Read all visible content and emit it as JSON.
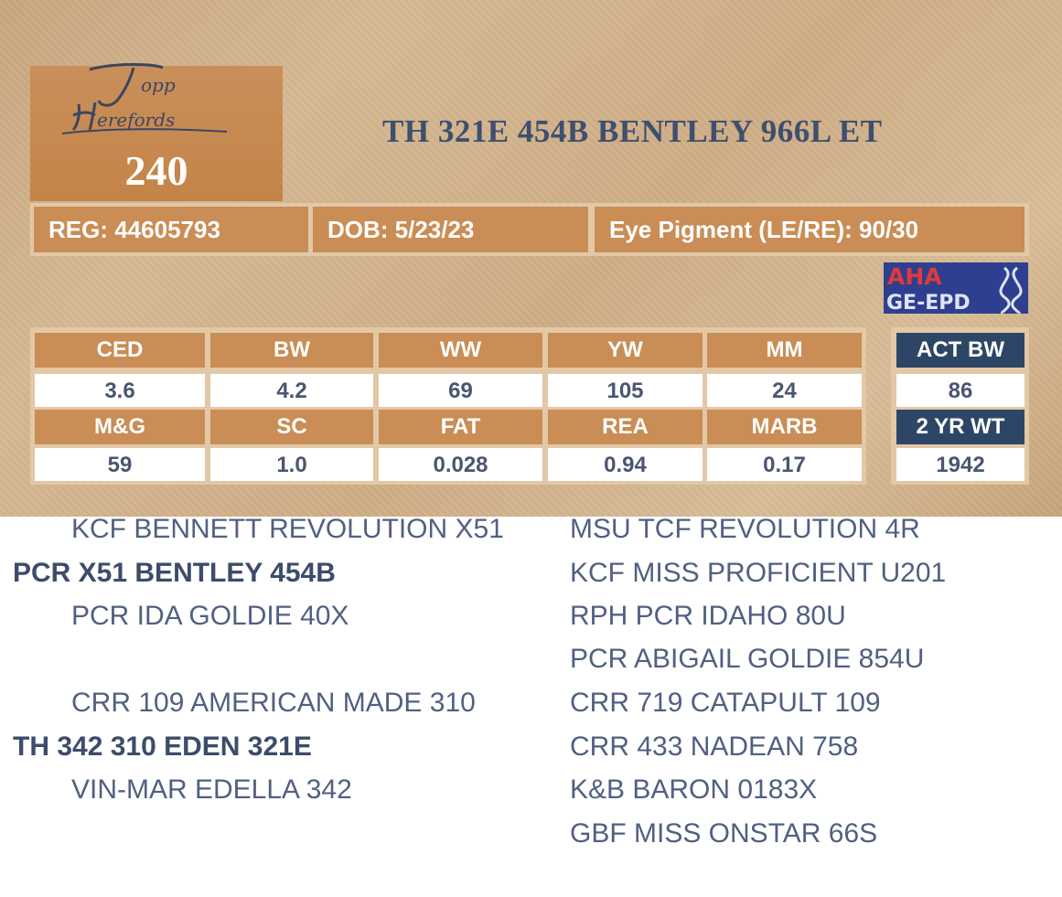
{
  "brand": {
    "logo_text": "Topp Herefords"
  },
  "lot_number": "240",
  "animal_name": "TH 321E 454B BENTLEY 966L ET",
  "info": {
    "reg": "REG: 44605793",
    "dob": "DOB: 5/23/23",
    "eye_pigment": "Eye Pigment (LE/RE): 90/30"
  },
  "badge": {
    "line1": "AHA",
    "line2": "GE-EPD"
  },
  "epd": {
    "row1_headers": [
      "CED",
      "BW",
      "WW",
      "YW",
      "MM"
    ],
    "row1_values": [
      "3.6",
      "4.2",
      "69",
      "105",
      "24"
    ],
    "row2_headers": [
      "M&G",
      "SC",
      "FAT",
      "REA",
      "MARB"
    ],
    "row2_values": [
      "59",
      "1.0",
      "0.028",
      "0.94",
      "0.17"
    ]
  },
  "actuals": {
    "act_bw_label": "ACT BW",
    "act_bw_value": "86",
    "yr2_label": "2 YR WT",
    "yr2_value": "1942"
  },
  "pedigree": {
    "sire_sire": "KCF BENNETT REVOLUTION X51",
    "sire": "PCR X51 BENTLEY 454B",
    "sire_dam": "PCR IDA GOLDIE 40X",
    "dam_sire": "CRR 109 AMERICAN MADE 310",
    "dam": "TH 342 310 EDEN 321E",
    "dam_dam": "VIN-MAR EDELLA 342",
    "right": [
      "MSU TCF REVOLUTION 4R",
      "KCF MISS PROFICIENT U201",
      "RPH PCR IDAHO 80U",
      "PCR ABIGAIL GOLDIE 854U",
      "CRR 719 CATAPULT 109",
      "CRR 433 NADEAN 758",
      "K&B BARON 0183X",
      "GBF MISS ONSTAR 66S"
    ]
  }
}
